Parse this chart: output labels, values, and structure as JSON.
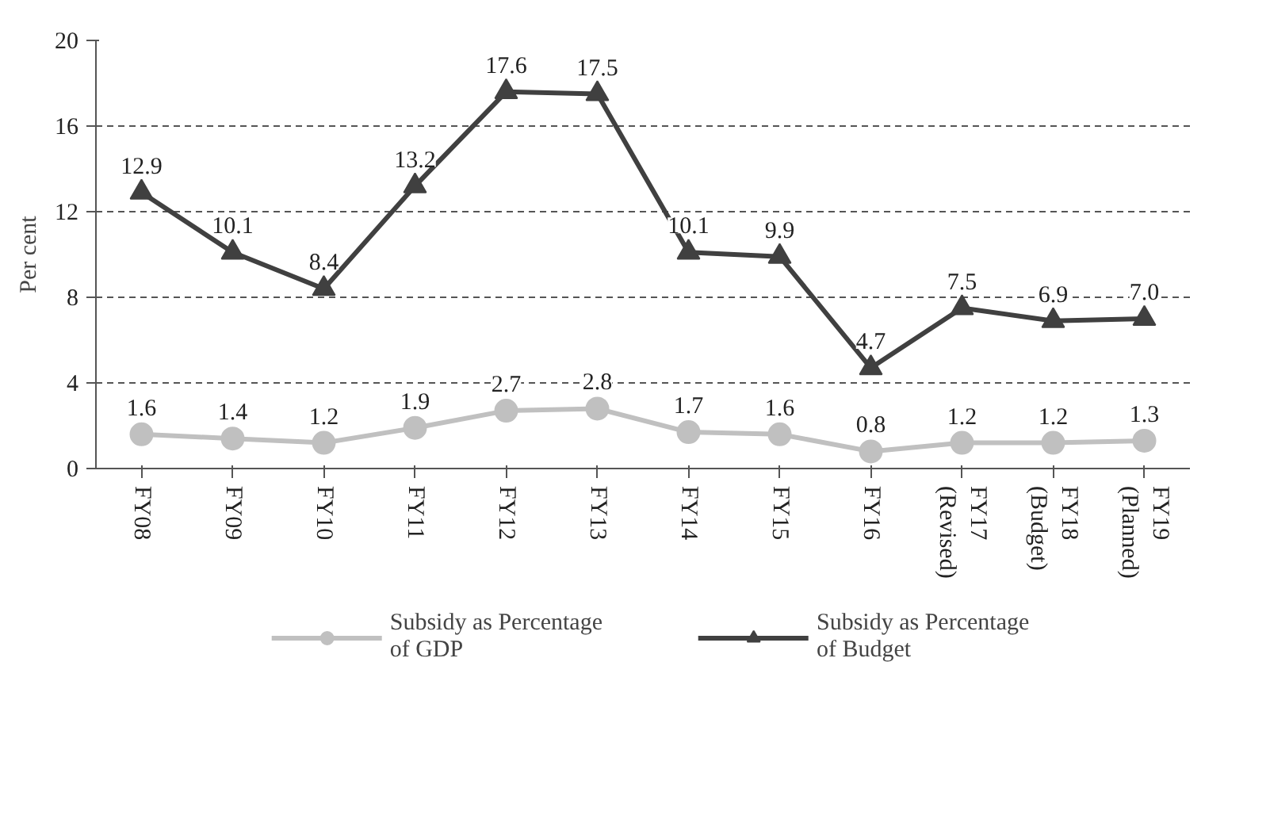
{
  "chart_data": {
    "type": "line",
    "ylabel": "Per cent",
    "categories": [
      "FY08",
      "FY09",
      "FY10",
      "FY11",
      "FY12",
      "FY13",
      "FY14",
      "FY15",
      "FY16",
      "FY17\n(Revised)",
      "FY18\n(Budget)",
      "FY19\n(Planned)"
    ],
    "series": [
      {
        "name": "Subsidy as Percentage\nof GDP",
        "color": "#c0c0c0",
        "marker": "circle",
        "values": [
          1.6,
          1.4,
          1.2,
          1.9,
          2.7,
          2.8,
          1.7,
          1.6,
          0.8,
          1.2,
          1.2,
          1.3
        ],
        "value_labels": [
          "1.6",
          "1.4",
          "1.2",
          "1.9",
          "2.7",
          "2.8",
          "1.7",
          "1.6",
          "0.8",
          "1.2",
          "1.2",
          "1.3"
        ]
      },
      {
        "name": "Subsidy as Percentage\nof Budget",
        "color": "#404040",
        "marker": "triangle",
        "values": [
          12.9,
          10.1,
          8.4,
          13.2,
          17.6,
          17.5,
          10.1,
          9.9,
          4.7,
          7.5,
          6.9,
          7.0
        ],
        "value_labels": [
          "12.9",
          "10.1",
          "8.4",
          "13.2",
          "17.6",
          "17.5",
          "10.1",
          "9.9",
          "4.7",
          "7.5",
          "6.9",
          "7.0"
        ]
      }
    ],
    "ylim": [
      0,
      20
    ],
    "yticks": [
      0,
      4,
      8,
      12,
      16,
      20
    ],
    "grid": "y",
    "legend": "bottom"
  }
}
